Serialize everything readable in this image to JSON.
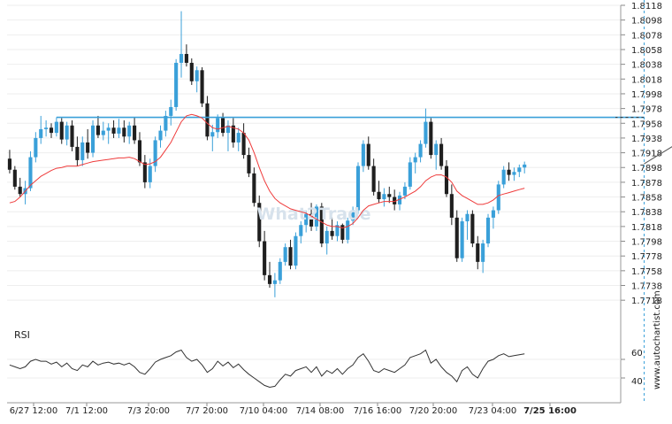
{
  "colors": {
    "up": "#3aa0d9",
    "down": "#1f1f1f",
    "ma": "#ef3b3b",
    "level": "#3aa0d9",
    "arrow": "#555555",
    "rsi": "#333333",
    "grid": "#eeeeee",
    "text": "#222222",
    "watermark": "#d7e2ec"
  },
  "watermark": "What2Trade",
  "vertical_brand": "www.autochartist.com",
  "rsi_panel": {
    "label": "RSI",
    "ticks": [
      "60",
      "40"
    ]
  },
  "chart_data": {
    "type": "candlestick",
    "title": "",
    "xlabel": "",
    "ylabel": "",
    "ylim": [
      1.7705,
      1.8118
    ],
    "y_ticks": [
      "1.8118",
      "1.8098",
      "1.8078",
      "1.8058",
      "1.8038",
      "1.8018",
      "1.7998",
      "1.7978",
      "1.7958",
      "1.7938",
      "1.7918",
      "1.7898",
      "1.7878",
      "1.7858",
      "1.7838",
      "1.7818",
      "1.7798",
      "1.7778",
      "1.7758",
      "1.7738",
      "1.7718"
    ],
    "x_ticks": [
      "6/27 12:00",
      "7/1 12:00",
      "7/3 20:00",
      "7/7 20:00",
      "7/10 04:00",
      "7/14 08:00",
      "7/16 16:00",
      "7/20 20:00",
      "7/23 04:00",
      "7/25 16:00"
    ],
    "resistance_level": 1.7966,
    "pattern_projection": {
      "from": [
        122,
        1.7903
      ],
      "to": [
        137,
        1.7968
      ]
    },
    "current_time_index": 122,
    "ohlc": [
      [
        1.791,
        1.7922,
        1.789,
        1.7895
      ],
      [
        1.7895,
        1.79,
        1.7868,
        1.7872
      ],
      [
        1.7872,
        1.7884,
        1.7858,
        1.7862
      ],
      [
        1.7862,
        1.788,
        1.7848,
        1.787
      ],
      [
        1.787,
        1.792,
        1.7866,
        1.7912
      ],
      [
        1.7912,
        1.7946,
        1.7905,
        1.7938
      ],
      [
        1.7938,
        1.7968,
        1.793,
        1.795
      ],
      [
        1.795,
        1.7962,
        1.794,
        1.7952
      ],
      [
        1.7952,
        1.7958,
        1.7938,
        1.7945
      ],
      [
        1.7945,
        1.7966,
        1.794,
        1.796
      ],
      [
        1.796,
        1.7965,
        1.793,
        1.7936
      ],
      [
        1.7936,
        1.796,
        1.7928,
        1.7955
      ],
      [
        1.7955,
        1.7962,
        1.792,
        1.7926
      ],
      [
        1.7926,
        1.794,
        1.79,
        1.7908
      ],
      [
        1.7908,
        1.794,
        1.79,
        1.7932
      ],
      [
        1.7932,
        1.795,
        1.791,
        1.7918
      ],
      [
        1.7918,
        1.7962,
        1.7912,
        1.7955
      ],
      [
        1.7955,
        1.7968,
        1.7938,
        1.7942
      ],
      [
        1.7942,
        1.796,
        1.7935,
        1.7948
      ],
      [
        1.7948,
        1.7958,
        1.793,
        1.7952
      ],
      [
        1.7952,
        1.7962,
        1.7938,
        1.7944
      ],
      [
        1.7944,
        1.7964,
        1.7938,
        1.7952
      ],
      [
        1.7952,
        1.7962,
        1.7932,
        1.794
      ],
      [
        1.794,
        1.796,
        1.793,
        1.7955
      ],
      [
        1.7955,
        1.7966,
        1.793,
        1.7935
      ],
      [
        1.7935,
        1.7946,
        1.79,
        1.7905
      ],
      [
        1.7905,
        1.7915,
        1.787,
        1.7878
      ],
      [
        1.7878,
        1.791,
        1.787,
        1.79
      ],
      [
        1.79,
        1.794,
        1.7892,
        1.7935
      ],
      [
        1.7935,
        1.7955,
        1.7925,
        1.7948
      ],
      [
        1.7948,
        1.7975,
        1.794,
        1.7968
      ],
      [
        1.7968,
        1.799,
        1.7955,
        1.798
      ],
      [
        1.798,
        1.8045,
        1.7975,
        1.804
      ],
      [
        1.804,
        1.811,
        1.802,
        1.8052
      ],
      [
        1.8052,
        1.8065,
        1.8035,
        1.804
      ],
      [
        1.804,
        1.8046,
        1.801,
        1.8015
      ],
      [
        1.8015,
        1.8035,
        1.8,
        1.803
      ],
      [
        1.803,
        1.8034,
        1.798,
        1.7985
      ],
      [
        1.7985,
        1.7995,
        1.7935,
        1.794
      ],
      [
        1.794,
        1.7956,
        1.792,
        1.7946
      ],
      [
        1.7946,
        1.797,
        1.7938,
        1.7965
      ],
      [
        1.7965,
        1.7972,
        1.794,
        1.7945
      ],
      [
        1.7945,
        1.7962,
        1.792,
        1.7955
      ],
      [
        1.7955,
        1.7965,
        1.7925,
        1.7932
      ],
      [
        1.7932,
        1.7952,
        1.792,
        1.7945
      ],
      [
        1.7945,
        1.7958,
        1.791,
        1.7915
      ],
      [
        1.7915,
        1.7925,
        1.7885,
        1.789
      ],
      [
        1.789,
        1.7898,
        1.7845,
        1.785
      ],
      [
        1.785,
        1.786,
        1.779,
        1.7798
      ],
      [
        1.7798,
        1.7812,
        1.7745,
        1.7752
      ],
      [
        1.7752,
        1.777,
        1.7735,
        1.774
      ],
      [
        1.774,
        1.7755,
        1.7722,
        1.7745
      ],
      [
        1.7745,
        1.7775,
        1.774,
        1.777
      ],
      [
        1.777,
        1.7795,
        1.7765,
        1.779
      ],
      [
        1.779,
        1.78,
        1.776,
        1.7765
      ],
      [
        1.7765,
        1.781,
        1.776,
        1.7805
      ],
      [
        1.7805,
        1.7825,
        1.7795,
        1.782
      ],
      [
        1.782,
        1.784,
        1.781,
        1.7835
      ],
      [
        1.7835,
        1.785,
        1.7812,
        1.7818
      ],
      [
        1.7818,
        1.7848,
        1.7812,
        1.7845
      ],
      [
        1.7845,
        1.785,
        1.779,
        1.7795
      ],
      [
        1.7795,
        1.7818,
        1.778,
        1.7812
      ],
      [
        1.7812,
        1.783,
        1.78,
        1.7805
      ],
      [
        1.7805,
        1.7825,
        1.7798,
        1.782
      ],
      [
        1.782,
        1.7822,
        1.7795,
        1.78
      ],
      [
        1.78,
        1.783,
        1.7795,
        1.7826
      ],
      [
        1.7826,
        1.7845,
        1.782,
        1.784
      ],
      [
        1.784,
        1.7905,
        1.7835,
        1.79
      ],
      [
        1.79,
        1.7935,
        1.7892,
        1.793
      ],
      [
        1.793,
        1.794,
        1.7895,
        1.79
      ],
      [
        1.79,
        1.791,
        1.786,
        1.7865
      ],
      [
        1.7865,
        1.788,
        1.785,
        1.7855
      ],
      [
        1.7855,
        1.787,
        1.7845,
        1.7862
      ],
      [
        1.7862,
        1.7872,
        1.785,
        1.7858
      ],
      [
        1.7858,
        1.7868,
        1.784,
        1.7848
      ],
      [
        1.7848,
        1.7865,
        1.784,
        1.786
      ],
      [
        1.786,
        1.7878,
        1.7855,
        1.7872
      ],
      [
        1.7872,
        1.7912,
        1.7868,
        1.7905
      ],
      [
        1.7905,
        1.7918,
        1.789,
        1.7912
      ],
      [
        1.7912,
        1.7935,
        1.7905,
        1.793
      ],
      [
        1.793,
        1.7978,
        1.7925,
        1.796
      ],
      [
        1.796,
        1.7965,
        1.791,
        1.7915
      ],
      [
        1.7915,
        1.7935,
        1.7895,
        1.793
      ],
      [
        1.793,
        1.7938,
        1.7895,
        1.79
      ],
      [
        1.79,
        1.7908,
        1.7858,
        1.7862
      ],
      [
        1.7862,
        1.7875,
        1.782,
        1.783
      ],
      [
        1.783,
        1.784,
        1.777,
        1.7775
      ],
      [
        1.7775,
        1.783,
        1.777,
        1.7825
      ],
      [
        1.7825,
        1.784,
        1.78,
        1.7835
      ],
      [
        1.7835,
        1.784,
        1.779,
        1.7795
      ],
      [
        1.7795,
        1.7805,
        1.776,
        1.777
      ],
      [
        1.777,
        1.78,
        1.7755,
        1.7795
      ],
      [
        1.7795,
        1.7835,
        1.779,
        1.783
      ],
      [
        1.783,
        1.7845,
        1.7815,
        1.784
      ],
      [
        1.784,
        1.788,
        1.7835,
        1.7875
      ],
      [
        1.7875,
        1.79,
        1.787,
        1.7895
      ],
      [
        1.7895,
        1.7905,
        1.788,
        1.7888
      ],
      [
        1.7888,
        1.7898,
        1.788,
        1.7892
      ],
      [
        1.7892,
        1.7902,
        1.7885,
        1.7898
      ],
      [
        1.7898,
        1.7906,
        1.789,
        1.7902
      ]
    ],
    "ma": [
      1.785,
      1.7852,
      1.7858,
      1.7866,
      1.7874,
      1.788,
      1.7886,
      1.789,
      1.7894,
      1.7897,
      1.7898,
      1.79,
      1.79,
      1.79,
      1.7902,
      1.7904,
      1.7906,
      1.7907,
      1.7908,
      1.7909,
      1.791,
      1.7911,
      1.7911,
      1.7912,
      1.791,
      1.7906,
      1.7902,
      1.7903,
      1.7906,
      1.7912,
      1.7922,
      1.7932,
      1.7946,
      1.796,
      1.7968,
      1.797,
      1.7968,
      1.7965,
      1.7958,
      1.7952,
      1.795,
      1.7952,
      1.7954,
      1.7952,
      1.795,
      1.7945,
      1.7935,
      1.7918,
      1.7898,
      1.788,
      1.7866,
      1.7856,
      1.785,
      1.7846,
      1.7842,
      1.784,
      1.7838,
      1.7836,
      1.7832,
      1.7828,
      1.7824,
      1.782,
      1.7818,
      1.7818,
      1.7816,
      1.7818,
      1.7822,
      1.783,
      1.784,
      1.7846,
      1.7848,
      1.785,
      1.7852,
      1.7852,
      1.7852,
      1.7855,
      1.7858,
      1.7862,
      1.7866,
      1.7872,
      1.788,
      1.7885,
      1.7888,
      1.7888,
      1.7885,
      1.7878,
      1.7866,
      1.786,
      1.7856,
      1.7852,
      1.7848,
      1.7848,
      1.785,
      1.7854,
      1.786,
      1.7862,
      1.7864,
      1.7866,
      1.7868,
      1.787
    ],
    "rsi": [
      54,
      52,
      50,
      52,
      58,
      60,
      58,
      58,
      55,
      57,
      52,
      56,
      50,
      48,
      54,
      52,
      58,
      54,
      56,
      57,
      55,
      56,
      54,
      56,
      52,
      46,
      44,
      50,
      57,
      60,
      62,
      64,
      68,
      70,
      62,
      58,
      60,
      54,
      46,
      50,
      58,
      53,
      57,
      51,
      55,
      49,
      44,
      40,
      36,
      32,
      30,
      31,
      38,
      44,
      42,
      48,
      50,
      52,
      46,
      52,
      42,
      48,
      45,
      50,
      44,
      50,
      54,
      62,
      66,
      58,
      48,
      46,
      50,
      48,
      46,
      50,
      54,
      62,
      64,
      66,
      70,
      56,
      60,
      52,
      46,
      42,
      36,
      48,
      52,
      44,
      40,
      50,
      58,
      60,
      64,
      66,
      63,
      64,
      65,
      66
    ],
    "rsi_ylim": [
      20,
      80
    ],
    "rsi_ticks": [
      60,
      40
    ],
    "grid": true,
    "legend": "none"
  }
}
